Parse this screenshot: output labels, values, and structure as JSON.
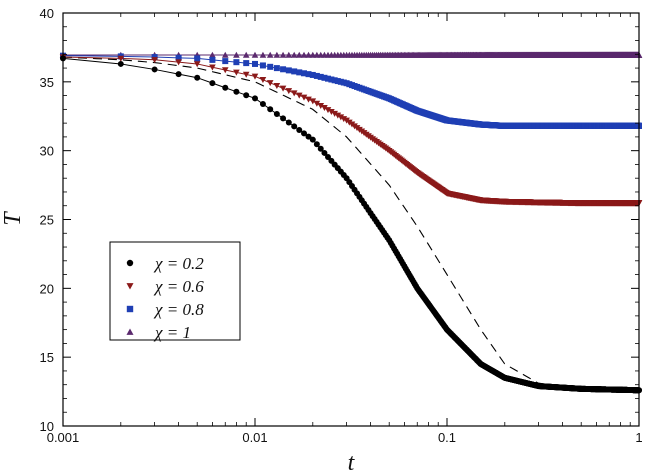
{
  "chart_data": {
    "type": "scatter",
    "title": "",
    "xlabel": "t",
    "ylabel": "T",
    "xscale": "log",
    "xlim": [
      0.001,
      1
    ],
    "ylim": [
      10,
      40
    ],
    "xticks": [
      0.001,
      0.01,
      0.1,
      1
    ],
    "xtick_labels": [
      "0.001",
      "0.01",
      "0.1",
      "1"
    ],
    "yticks": [
      10,
      15,
      20,
      25,
      30,
      35,
      40
    ],
    "ytick_labels": [
      "10",
      "15",
      "20",
      "25",
      "30",
      "35",
      "40"
    ],
    "grid": false,
    "legend_position": "lower-left",
    "series": [
      {
        "name": "χ = 0.2",
        "marker": "circle",
        "color": "#000000",
        "x": [
          0.001,
          0.002,
          0.003,
          0.005,
          0.01,
          0.02,
          0.03,
          0.05,
          0.07,
          0.1,
          0.15,
          0.2,
          0.3,
          0.5,
          0.7,
          1.0
        ],
        "y": [
          36.7,
          36.3,
          35.9,
          35.3,
          33.8,
          30.8,
          28.0,
          23.5,
          20.0,
          17.0,
          14.5,
          13.5,
          12.9,
          12.7,
          12.65,
          12.6
        ]
      },
      {
        "name": "χ = 0.6",
        "marker": "triangle-down",
        "color": "#8b1a1a",
        "x": [
          0.001,
          0.002,
          0.003,
          0.005,
          0.01,
          0.02,
          0.03,
          0.05,
          0.07,
          0.1,
          0.15,
          0.2,
          0.3,
          0.5,
          0.7,
          1.0
        ],
        "y": [
          36.8,
          36.7,
          36.6,
          36.3,
          35.4,
          33.6,
          32.2,
          30.0,
          28.4,
          26.9,
          26.4,
          26.3,
          26.25,
          26.2,
          26.2,
          26.2
        ]
      },
      {
        "name": "χ = 0.8",
        "marker": "square",
        "color": "#1f3fb4",
        "x": [
          0.001,
          0.002,
          0.003,
          0.005,
          0.01,
          0.02,
          0.03,
          0.05,
          0.07,
          0.1,
          0.15,
          0.2,
          0.3,
          0.5,
          0.7,
          1.0
        ],
        "y": [
          36.9,
          36.85,
          36.8,
          36.7,
          36.3,
          35.5,
          34.9,
          33.8,
          32.9,
          32.2,
          31.9,
          31.8,
          31.8,
          31.8,
          31.8,
          31.8
        ]
      },
      {
        "name": "χ = 1",
        "marker": "triangle-up",
        "color": "#5b2a6e",
        "x": [
          0.001,
          0.002,
          0.003,
          0.005,
          0.01,
          0.02,
          0.03,
          0.05,
          0.07,
          0.1,
          0.15,
          0.2,
          0.3,
          0.5,
          0.7,
          1.0
        ],
        "y": [
          36.95,
          36.95,
          36.95,
          36.95,
          36.95,
          36.95,
          36.95,
          36.95,
          36.95,
          36.95,
          36.95,
          36.95,
          36.95,
          36.95,
          36.95,
          36.95
        ]
      }
    ],
    "reference_curve": {
      "style": "dashed",
      "color": "#000000",
      "x": [
        0.001,
        0.002,
        0.003,
        0.005,
        0.01,
        0.02,
        0.03,
        0.05,
        0.07,
        0.1,
        0.15,
        0.2,
        0.3,
        0.5,
        0.7,
        1.0
      ],
      "y": [
        36.8,
        36.6,
        36.4,
        36.0,
        35.0,
        33.0,
        31.0,
        27.5,
        24.5,
        21.0,
        17.0,
        14.5,
        13.1,
        12.8,
        12.7,
        12.6
      ]
    }
  }
}
